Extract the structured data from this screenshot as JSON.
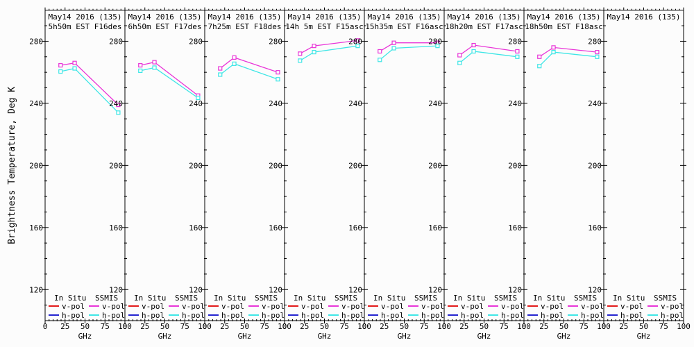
{
  "figure": {
    "ylabel": "Brightness Temperature, Deg K",
    "xlabel": "GHz",
    "background": "#fcfcfc",
    "axis_color": "#000000"
  },
  "colors": {
    "insitu_v": "#e31a1a",
    "insitu_h": "#2424d0",
    "ssmis_v": "#e935d8",
    "ssmis_h": "#3fe6e6",
    "axis": "#000000",
    "background": "#fcfcfc"
  },
  "legend": {
    "columns": [
      {
        "header": "In Situ",
        "items": [
          {
            "label": "v-pol",
            "color_key": "insitu_v"
          },
          {
            "label": "h-pol",
            "color_key": "insitu_h"
          }
        ]
      },
      {
        "header": "SSMIS",
        "items": [
          {
            "label": "v-pol",
            "color_key": "ssmis_v"
          },
          {
            "label": "h-pol",
            "color_key": "ssmis_h"
          }
        ]
      }
    ]
  },
  "chart_data": {
    "type": "line",
    "x_GHz": [
      19.35,
      37.0,
      91.655
    ],
    "xlim": [
      0,
      100
    ],
    "ylim": [
      100,
      300
    ],
    "xticks": [
      0,
      25,
      50,
      75,
      100
    ],
    "yticks": [
      120,
      160,
      200,
      240,
      280
    ],
    "x_minor_step": 5,
    "y_minor_step": 10,
    "xlabel": "GHz",
    "ylabel": "Brightness Temperature, Deg K",
    "marker": "open-square",
    "panels": [
      {
        "title": "May14 2016 (135)",
        "subtitle": " 5h50m EST F16des",
        "series": [
          {
            "name": "SSMIS v-pol",
            "color_key": "ssmis_v",
            "values": [
              264.5,
              266.0,
              239.0
            ]
          },
          {
            "name": "SSMIS h-pol",
            "color_key": "ssmis_h",
            "values": [
              260.5,
              262.5,
              234.0
            ]
          }
        ]
      },
      {
        "title": "May14 2016 (135)",
        "subtitle": " 6h50m EST F17des",
        "series": [
          {
            "name": "SSMIS v-pol",
            "color_key": "ssmis_v",
            "values": [
              264.5,
              266.5,
              245.0
            ]
          },
          {
            "name": "SSMIS h-pol",
            "color_key": "ssmis_h",
            "values": [
              261.0,
              263.0,
              243.5
            ]
          }
        ]
      },
      {
        "title": "May14 2016 (135)",
        "subtitle": " 7h25m EST F18des",
        "series": [
          {
            "name": "SSMIS v-pol",
            "color_key": "ssmis_v",
            "values": [
              262.5,
              269.5,
              260.0
            ]
          },
          {
            "name": "SSMIS h-pol",
            "color_key": "ssmis_h",
            "values": [
              258.5,
              265.5,
              255.5
            ]
          }
        ]
      },
      {
        "title": "May14 2016 (135)",
        "subtitle": "14h 5m EST F15asc",
        "series": [
          {
            "name": "SSMIS v-pol",
            "color_key": "ssmis_v",
            "values": [
              272.0,
              277.0,
              280.5
            ]
          },
          {
            "name": "SSMIS h-pol",
            "color_key": "ssmis_h",
            "values": [
              267.5,
              273.0,
              277.0
            ]
          }
        ]
      },
      {
        "title": "May14 2016 (135)",
        "subtitle": "15h35m EST F16asc",
        "series": [
          {
            "name": "SSMIS v-pol",
            "color_key": "ssmis_v",
            "values": [
              273.5,
              279.0,
              279.0
            ]
          },
          {
            "name": "SSMIS h-pol",
            "color_key": "ssmis_h",
            "values": [
              268.0,
              275.5,
              277.0
            ]
          }
        ]
      },
      {
        "title": "May14 2016 (135)",
        "subtitle": "18h20m EST F17asc",
        "series": [
          {
            "name": "SSMIS v-pol",
            "color_key": "ssmis_v",
            "values": [
              271.0,
              277.5,
              273.5
            ]
          },
          {
            "name": "SSMIS h-pol",
            "color_key": "ssmis_h",
            "values": [
              266.0,
              273.5,
              270.0
            ]
          }
        ]
      },
      {
        "title": "May14 2016 (135)",
        "subtitle": "18h50m EST F18asc",
        "series": [
          {
            "name": "SSMIS v-pol",
            "color_key": "ssmis_v",
            "values": [
              270.0,
              276.0,
              273.0
            ]
          },
          {
            "name": "SSMIS h-pol",
            "color_key": "ssmis_h",
            "values": [
              264.0,
              273.0,
              270.0
            ]
          }
        ]
      },
      {
        "title": "May14 2016 (135)",
        "subtitle": "",
        "series": []
      }
    ]
  }
}
